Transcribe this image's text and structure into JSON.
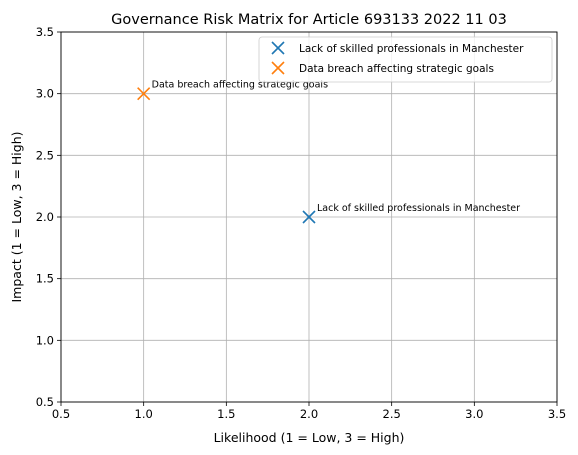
{
  "chart_data": {
    "type": "scatter",
    "title": "Governance Risk Matrix for Article 693133 2022 11 03",
    "xlabel": "Likelihood (1 = Low, 3 = High)",
    "ylabel": "Impact (1 = Low, 3 = High)",
    "xlim": [
      0.5,
      3.5
    ],
    "ylim": [
      0.5,
      3.5
    ],
    "xticks": [
      "0.5",
      "1.0",
      "1.5",
      "2.0",
      "2.5",
      "3.0",
      "3.5"
    ],
    "yticks": [
      "0.5",
      "1.0",
      "1.5",
      "2.0",
      "2.5",
      "3.0",
      "3.5"
    ],
    "grid": true,
    "legend_position": "top-right",
    "series": [
      {
        "name": "Lack of skilled professionals in Manchester",
        "color": "#1f77b4",
        "marker": "x",
        "x": [
          2
        ],
        "y": [
          2
        ],
        "annotation": "Lack of skilled professionals in Manchester"
      },
      {
        "name": "Data breach affecting strategic goals",
        "color": "#ff7f0e",
        "marker": "x",
        "x": [
          1
        ],
        "y": [
          3
        ],
        "annotation": "Data breach affecting strategic goals"
      }
    ]
  }
}
